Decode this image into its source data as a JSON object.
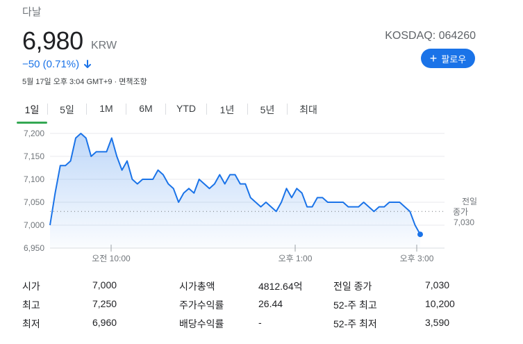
{
  "header": {
    "company": "다날",
    "price": "6,980",
    "currency": "KRW",
    "change": "−50 (0.71%)",
    "timestamp": "5월 17일 오후 3:04 GMT+9 · 면책조항",
    "exchange": "KOSDAQ: 064260",
    "follow_label": "팔로우",
    "colors": {
      "accent": "#1a73e8",
      "negative": "#1a73e8",
      "active_tab": "#34a853"
    },
    "icons": [
      "arrow-down-icon",
      "plus-icon"
    ]
  },
  "tabs": [
    {
      "label": "1일",
      "active": true
    },
    {
      "label": "5일"
    },
    {
      "label": "1M"
    },
    {
      "label": "6M"
    },
    {
      "label": "YTD"
    },
    {
      "label": "1년"
    },
    {
      "label": "5년"
    },
    {
      "label": "최대"
    }
  ],
  "chart_data": {
    "type": "area",
    "ylim": [
      6950,
      7200
    ],
    "y_ticks": [
      "6,950",
      "7,000",
      "7,050",
      "7,100",
      "7,150",
      "7,200"
    ],
    "x_ticks": [
      "오전 10:00",
      "오후 1:00",
      "오후 3:00"
    ],
    "previous_close": {
      "label_1": "전일",
      "label_2": "종가",
      "value": "7,030",
      "y": 7030
    },
    "line_color": "#1a73e8",
    "grid": "horizontal",
    "values": [
      7000,
      7070,
      7130,
      7130,
      7140,
      7190,
      7200,
      7190,
      7150,
      7160,
      7160,
      7160,
      7190,
      7150,
      7120,
      7140,
      7100,
      7090,
      7100,
      7100,
      7100,
      7120,
      7110,
      7090,
      7080,
      7050,
      7070,
      7080,
      7070,
      7100,
      7090,
      7080,
      7090,
      7110,
      7090,
      7110,
      7110,
      7090,
      7090,
      7060,
      7050,
      7040,
      7050,
      7040,
      7030,
      7050,
      7080,
      7060,
      7080,
      7070,
      7040,
      7040,
      7060,
      7060,
      7050,
      7050,
      7050,
      7050,
      7040,
      7040,
      7040,
      7050,
      7040,
      7030,
      7040,
      7040,
      7050,
      7050,
      7050,
      7040,
      7030,
      7000,
      6980
    ]
  },
  "stats": {
    "col1": [
      {
        "label": "시가",
        "value": "7,000"
      },
      {
        "label": "최고",
        "value": "7,250"
      },
      {
        "label": "최저",
        "value": "6,960"
      }
    ],
    "col2": [
      {
        "label": "시가총액",
        "value": "4812.64억"
      },
      {
        "label": "주가수익률",
        "value": "26.44"
      },
      {
        "label": "배당수익률",
        "value": "-"
      }
    ],
    "col3": [
      {
        "label": "전일 종가",
        "value": "7,030"
      },
      {
        "label": "52-주 최고",
        "value": "10,200"
      },
      {
        "label": "52-주 최저",
        "value": "3,590"
      }
    ]
  }
}
